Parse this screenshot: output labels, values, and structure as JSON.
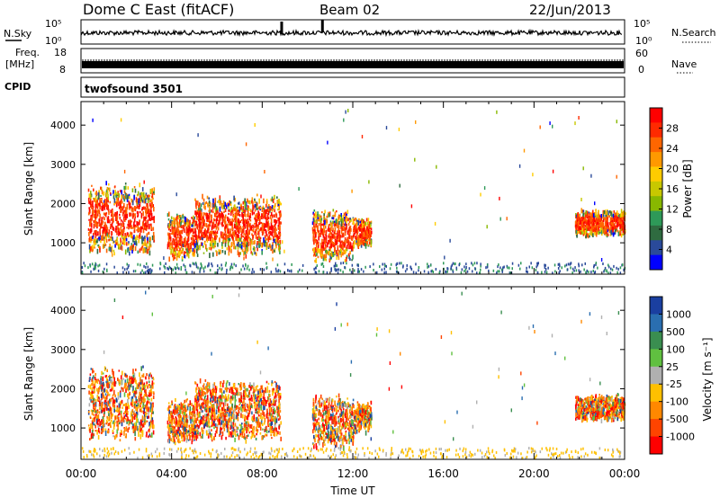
{
  "header": {
    "title": "Dome C East (fitACF)",
    "beam": "Beam 02",
    "date": "22/Jun/2013"
  },
  "summary": {
    "nsky_label": "N.Sky",
    "nsky_top": "10^5",
    "nsky_bottom": "10^0",
    "nsky_right_top": "10^5",
    "nsky_right_bottom": "10^0",
    "nsearch_label": "N.Search",
    "freq_label": "Freq.",
    "freq_unit": "[MHz]",
    "freq_ticks": [
      "18",
      "8"
    ],
    "nave_ticks": [
      "60",
      "0"
    ],
    "nave_label": "Nave",
    "cpid_label": "CPID",
    "cpid_value": "twofsound 3501"
  },
  "chart_data": [
    {
      "type": "heatmap",
      "name": "power",
      "ylabel": "Slant Range [km]",
      "ylim": [
        200,
        4600
      ],
      "yticks": [
        "1000",
        "2000",
        "3000",
        "4000"
      ],
      "colorbar_label": "Power [dB]",
      "colorbar_ticks": [
        "28",
        "24",
        "20",
        "16",
        "12",
        "8",
        "4"
      ],
      "colorbar_colors": [
        "#ff0000",
        "#ff2a00",
        "#ff6600",
        "#ff9900",
        "#ffcc00",
        "#c8c800",
        "#88b800",
        "#2e9958",
        "#2f6b40",
        "#2a4a9a",
        "#0000ff"
      ],
      "echo_regions": [
        {
          "t": [
            0.3,
            3.2
          ],
          "r": [
            700,
            2600
          ]
        },
        {
          "t": [
            3.8,
            5.0
          ],
          "r": [
            600,
            1800
          ]
        },
        {
          "t": [
            5.0,
            8.8
          ],
          "r": [
            700,
            2300
          ]
        },
        {
          "t": [
            10.2,
            12.0
          ],
          "r": [
            500,
            1900
          ]
        },
        {
          "t": [
            12.0,
            12.8
          ],
          "r": [
            900,
            1700
          ]
        },
        {
          "t": [
            21.8,
            24.0
          ],
          "r": [
            1200,
            1900
          ]
        }
      ]
    },
    {
      "type": "heatmap",
      "name": "velocity",
      "ylabel": "Slant Range [km]",
      "xlabel": "Time UT",
      "ylim": [
        200,
        4600
      ],
      "yticks": [
        "1000",
        "2000",
        "3000",
        "4000"
      ],
      "xticks": [
        "00:00",
        "04:00",
        "08:00",
        "12:00",
        "16:00",
        "20:00",
        "00:00"
      ],
      "colorbar_label": "Velocity [m s⁻¹]",
      "colorbar_ticks": [
        "1000",
        "500",
        "100",
        "25",
        "-25",
        "-100",
        "-500",
        "-1000"
      ],
      "colorbar_colors": [
        "#1a3fa0",
        "#2a6eb0",
        "#3a8e50",
        "#60c040",
        "#b0b0b0",
        "#ffc000",
        "#ff8800",
        "#ff4400",
        "#ff0000"
      ],
      "echo_regions": [
        {
          "t": [
            0.3,
            3.2
          ],
          "r": [
            700,
            2600
          ]
        },
        {
          "t": [
            3.8,
            5.0
          ],
          "r": [
            600,
            1800
          ]
        },
        {
          "t": [
            5.0,
            8.8
          ],
          "r": [
            700,
            2300
          ]
        },
        {
          "t": [
            10.2,
            12.0
          ],
          "r": [
            500,
            1900
          ]
        },
        {
          "t": [
            12.0,
            12.8
          ],
          "r": [
            900,
            1700
          ]
        },
        {
          "t": [
            21.8,
            24.0
          ],
          "r": [
            1200,
            1900
          ]
        }
      ]
    }
  ]
}
